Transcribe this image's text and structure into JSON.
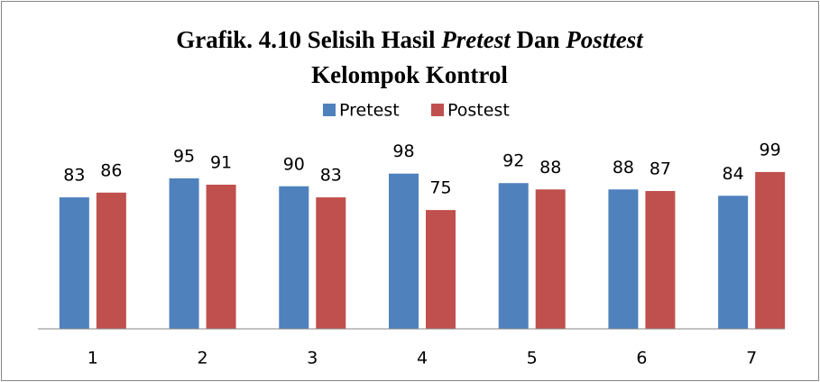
{
  "chart_data": {
    "type": "bar",
    "title": [
      [
        {
          "text": "Grafik. 4.10 Selisih Hasil ",
          "italic": false
        },
        {
          "text": "Pretest",
          "italic": true
        },
        {
          "text": " Dan ",
          "italic": false
        },
        {
          "text": "Posttest",
          "italic": true
        }
      ],
      [
        {
          "text": "Kelompok Kontrol",
          "italic": false
        }
      ]
    ],
    "categories": [
      "1",
      "2",
      "3",
      "4",
      "5",
      "6",
      "7"
    ],
    "series": [
      {
        "name": "Pretest",
        "color": "#4f81bd",
        "values": [
          83,
          95,
          90,
          98,
          92,
          88,
          84
        ]
      },
      {
        "name": "Postest",
        "color": "#c0504d",
        "values": [
          86,
          91,
          83,
          75,
          88,
          87,
          99
        ]
      }
    ],
    "ylim": [
      0,
      120
    ],
    "legend": "top"
  }
}
